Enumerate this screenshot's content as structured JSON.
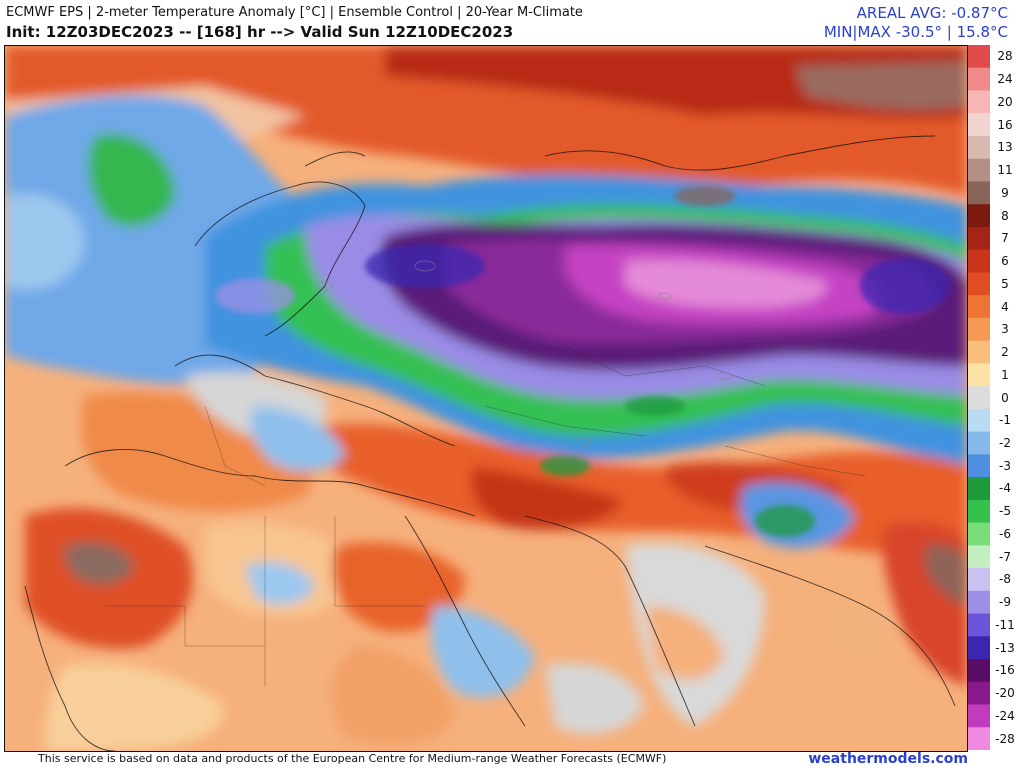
{
  "header": {
    "line1": "ECMWF EPS | 2-meter Temperature Anomaly [°C] | Ensemble Control | 20-Year M-Climate",
    "line2": "Init: 12Z03DEC2023 -- [168] hr --> Valid Sun 12Z10DEC2023",
    "areal_avg": "AREAL AVG: -0.87°C",
    "min_max": "MIN|MAX -30.5° | 15.8°C"
  },
  "legend": {
    "items": [
      {
        "label": "28",
        "color": "#e04a4a"
      },
      {
        "label": "24",
        "color": "#f08a8a"
      },
      {
        "label": "20",
        "color": "#f7b5b5"
      },
      {
        "label": "16",
        "color": "#f2d5d0"
      },
      {
        "label": "13",
        "color": "#d8b9b0"
      },
      {
        "label": "11",
        "color": "#b38f85"
      },
      {
        "label": "9",
        "color": "#8a6458"
      },
      {
        "label": "8",
        "color": "#7a1a10"
      },
      {
        "label": "7",
        "color": "#a42416"
      },
      {
        "label": "6",
        "color": "#c8351c"
      },
      {
        "label": "5",
        "color": "#e04e24"
      },
      {
        "label": "4",
        "color": "#ee7434"
      },
      {
        "label": "3",
        "color": "#f59a54"
      },
      {
        "label": "2",
        "color": "#f9bd7c"
      },
      {
        "label": "1",
        "color": "#fde2a8"
      },
      {
        "label": "0",
        "color": "#dcdcdc"
      },
      {
        "label": "-1",
        "color": "#b9dcf2"
      },
      {
        "label": "-2",
        "color": "#86b9ea"
      },
      {
        "label": "-3",
        "color": "#4f8fe0"
      },
      {
        "label": "-4",
        "color": "#1e9a3c"
      },
      {
        "label": "-5",
        "color": "#33c14c"
      },
      {
        "label": "-6",
        "color": "#79dc7a"
      },
      {
        "label": "-7",
        "color": "#c3eec0"
      },
      {
        "label": "-8",
        "color": "#c9c2f0"
      },
      {
        "label": "-9",
        "color": "#9c8fe6"
      },
      {
        "label": "-11",
        "color": "#6a55d8"
      },
      {
        "label": "-13",
        "color": "#3b26b0"
      },
      {
        "label": "-16",
        "color": "#5a0d66"
      },
      {
        "label": "-20",
        "color": "#8a1a8c"
      },
      {
        "label": "-24",
        "color": "#c23bbf"
      },
      {
        "label": "-28",
        "color": "#f08ae0"
      }
    ]
  },
  "footer": {
    "attribution": "This service is based on data and products of the European Centre for Medium-range Weather Forecasts (ECMWF)",
    "site": "weathermodels.com"
  }
}
